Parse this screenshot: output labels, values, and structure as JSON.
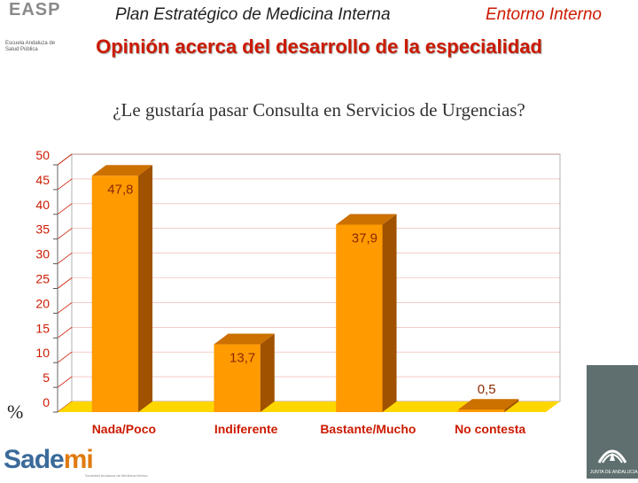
{
  "header": {
    "left_title": "Plan Estratégico de Medicina Interna",
    "right_title": "Entorno Interno",
    "subtitle": "Opinión acerca del desarrollo de la especialidad"
  },
  "logos": {
    "easp_letters": "EASP",
    "easp_sub": "Escuela Andaluza de Salud Pública",
    "sademi_a": "Sade",
    "sademi_b": "mi",
    "sademi_sub": "Sociedad Andaluza de Medicina Interna",
    "junta_sub": "JUNTA DE ANDALUCIA"
  },
  "chart_data": {
    "type": "bar",
    "title": "¿Le gustaría pasar Consulta en Servicios de Urgencias?",
    "ylabel": "%",
    "xlabel": "",
    "ylim": [
      0,
      50
    ],
    "yticks": [
      "0",
      "5",
      "10",
      "15",
      "20",
      "25",
      "30",
      "35",
      "40",
      "45",
      "50"
    ],
    "categories": [
      "Nada/Poco",
      "Indiferente",
      "Bastante/Mucho",
      "No contesta"
    ],
    "values": [
      47.8,
      13.7,
      37.9,
      0.5
    ],
    "labels": [
      "47,8",
      "13,7",
      "37,9",
      "0,5"
    ],
    "colors": {
      "bar_front": "#ff9a00",
      "bar_side": "#a05200",
      "bar_top": "#cc7000",
      "axis_text": "#cc1a00",
      "label_text": "#8b2a00",
      "floor": "#ffd700",
      "wall_border": "#b0b0b0",
      "grid": "#cc1a00"
    }
  }
}
